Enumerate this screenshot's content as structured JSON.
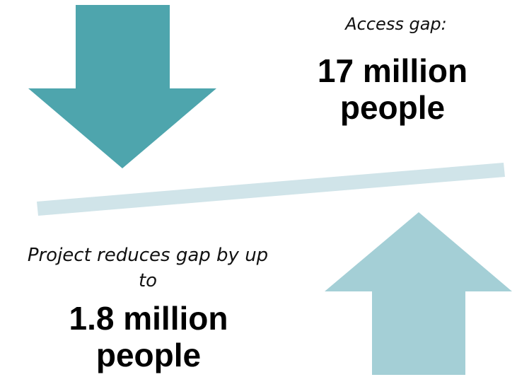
{
  "colors": {
    "down_arrow": "#4ea5ad",
    "up_arrow": "#a4cfd6",
    "beam": "#d0e4e9",
    "text": "#000000"
  },
  "access_gap": {
    "caption": "Access gap:",
    "value_line1": "17 million",
    "value_line2": "people"
  },
  "reduction": {
    "caption_line1": "Project reduces gap by up",
    "caption_line2": "to",
    "value_line1": "1.8 million",
    "value_line2": "people"
  }
}
